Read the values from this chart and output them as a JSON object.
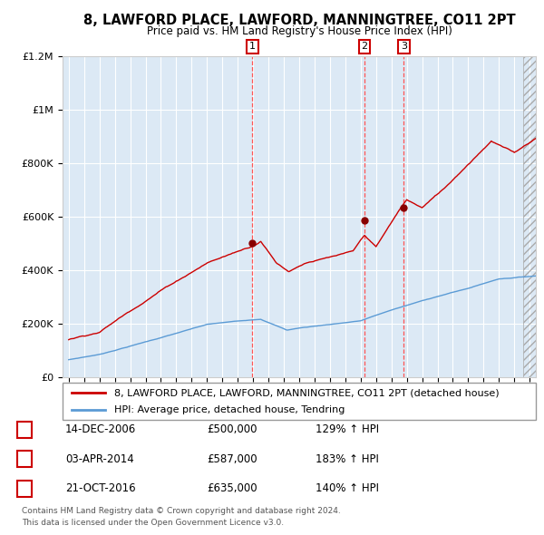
{
  "title": "8, LAWFORD PLACE, LAWFORD, MANNINGTREE, CO11 2PT",
  "subtitle": "Price paid vs. HM Land Registry's House Price Index (HPI)",
  "plot_bg_color": "#dce9f5",
  "hpi_line_color": "#5b9bd5",
  "price_line_color": "#cc0000",
  "sales": [
    {
      "label": "1",
      "x": 2006.96,
      "price": 500000
    },
    {
      "label": "2",
      "x": 2014.25,
      "price": 587000
    },
    {
      "label": "3",
      "x": 2016.8,
      "price": 635000
    }
  ],
  "legend_red": "8, LAWFORD PLACE, LAWFORD, MANNINGTREE, CO11 2PT (detached house)",
  "legend_blue": "HPI: Average price, detached house, Tendring",
  "footer1": "Contains HM Land Registry data © Crown copyright and database right 2024.",
  "footer2": "This data is licensed under the Open Government Licence v3.0.",
  "table_rows": [
    {
      "num": "1",
      "date": "14-DEC-2006",
      "price": "£500,000",
      "hpi": "129% ↑ HPI"
    },
    {
      "num": "2",
      "date": "03-APR-2014",
      "price": "£587,000",
      "hpi": "183% ↑ HPI"
    },
    {
      "num": "3",
      "date": "21-OCT-2016",
      "price": "£635,000",
      "hpi": "140% ↑ HPI"
    }
  ],
  "ylim": [
    0,
    1200000
  ],
  "xlim": [
    1994.6,
    2025.4
  ],
  "yticks": [
    0,
    200000,
    400000,
    600000,
    800000,
    1000000,
    1200000
  ],
  "ytick_labels": [
    "£0",
    "£200K",
    "£400K",
    "£600K",
    "£800K",
    "£1M",
    "£1.2M"
  ]
}
